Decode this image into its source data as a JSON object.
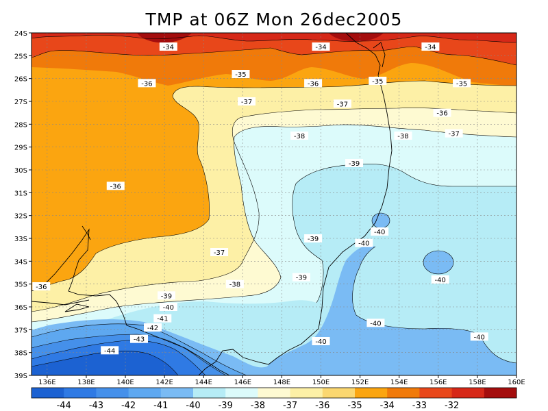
{
  "map": {
    "title": "TMP at 06Z Mon 26dec2005",
    "lat_labels": [
      "24S",
      "25S",
      "26S",
      "27S",
      "28S",
      "29S",
      "30S",
      "31S",
      "32S",
      "33S",
      "34S",
      "35S",
      "36S",
      "37S",
      "38S",
      "39S"
    ],
    "lon_labels": [
      "136E",
      "138E",
      "140E",
      "142E",
      "144E",
      "146E",
      "148E",
      "150E",
      "152E",
      "154E",
      "156E",
      "158E",
      "160E"
    ],
    "contour_labels": [
      {
        "text": "-34",
        "lon": 142.2,
        "lat": -24.6
      },
      {
        "text": "-34",
        "lon": 150.0,
        "lat": -24.6
      },
      {
        "text": "-34",
        "lon": 155.6,
        "lat": -24.6
      },
      {
        "text": "-35",
        "lon": 145.9,
        "lat": -25.8
      },
      {
        "text": "-36",
        "lon": 141.1,
        "lat": -26.2
      },
      {
        "text": "-36",
        "lon": 149.6,
        "lat": -26.2
      },
      {
        "text": "-35",
        "lon": 152.9,
        "lat": -26.1
      },
      {
        "text": "-35",
        "lon": 157.2,
        "lat": -26.2
      },
      {
        "text": "-37",
        "lon": 146.2,
        "lat": -27.0
      },
      {
        "text": "-37",
        "lon": 151.1,
        "lat": -27.1
      },
      {
        "text": "-36",
        "lon": 156.2,
        "lat": -27.5
      },
      {
        "text": "-38",
        "lon": 148.9,
        "lat": -28.5
      },
      {
        "text": "-38",
        "lon": 154.2,
        "lat": -28.5
      },
      {
        "text": "-37",
        "lon": 156.8,
        "lat": -28.4
      },
      {
        "text": "-39",
        "lon": 151.7,
        "lat": -29.7
      },
      {
        "text": "-36",
        "lon": 139.5,
        "lat": -30.7
      },
      {
        "text": "-40",
        "lon": 153.0,
        "lat": -32.7
      },
      {
        "text": "-39",
        "lon": 149.6,
        "lat": -33.0
      },
      {
        "text": "-40",
        "lon": 152.2,
        "lat": -33.2
      },
      {
        "text": "-37",
        "lon": 144.8,
        "lat": -33.6
      },
      {
        "text": "-39",
        "lon": 149.0,
        "lat": -34.7
      },
      {
        "text": "-40",
        "lon": 156.1,
        "lat": -34.8
      },
      {
        "text": "-36",
        "lon": 135.7,
        "lat": -35.1
      },
      {
        "text": "-38",
        "lon": 145.6,
        "lat": -35.0
      },
      {
        "text": "-39",
        "lon": 142.1,
        "lat": -35.5
      },
      {
        "text": "-40",
        "lon": 142.2,
        "lat": -36.0
      },
      {
        "text": "-41",
        "lon": 141.9,
        "lat": -36.5
      },
      {
        "text": "-40",
        "lon": 152.8,
        "lat": -36.7
      },
      {
        "text": "-42",
        "lon": 141.4,
        "lat": -36.9
      },
      {
        "text": "-40",
        "lon": 158.1,
        "lat": -37.3
      },
      {
        "text": "-43",
        "lon": 140.7,
        "lat": -37.4
      },
      {
        "text": "-40",
        "lon": 150.0,
        "lat": -37.5
      },
      {
        "text": "-44",
        "lon": 139.2,
        "lat": -37.9
      }
    ]
  },
  "colorbar": {
    "colors": [
      "#1c62d2",
      "#2f7ae4",
      "#4590ea",
      "#5ea8f0",
      "#7abbf4",
      "#b6ecf6",
      "#dcfbfb",
      "#fefad2",
      "#fdf0a6",
      "#fbd770",
      "#fba510",
      "#f07a0a",
      "#e8471a",
      "#d62818",
      "#a40d0d"
    ],
    "labels": [
      "-44",
      "-43",
      "-42",
      "-41",
      "-40",
      "-39",
      "-38",
      "-37",
      "-36",
      "-35",
      "-34",
      "-33",
      "-32"
    ]
  }
}
